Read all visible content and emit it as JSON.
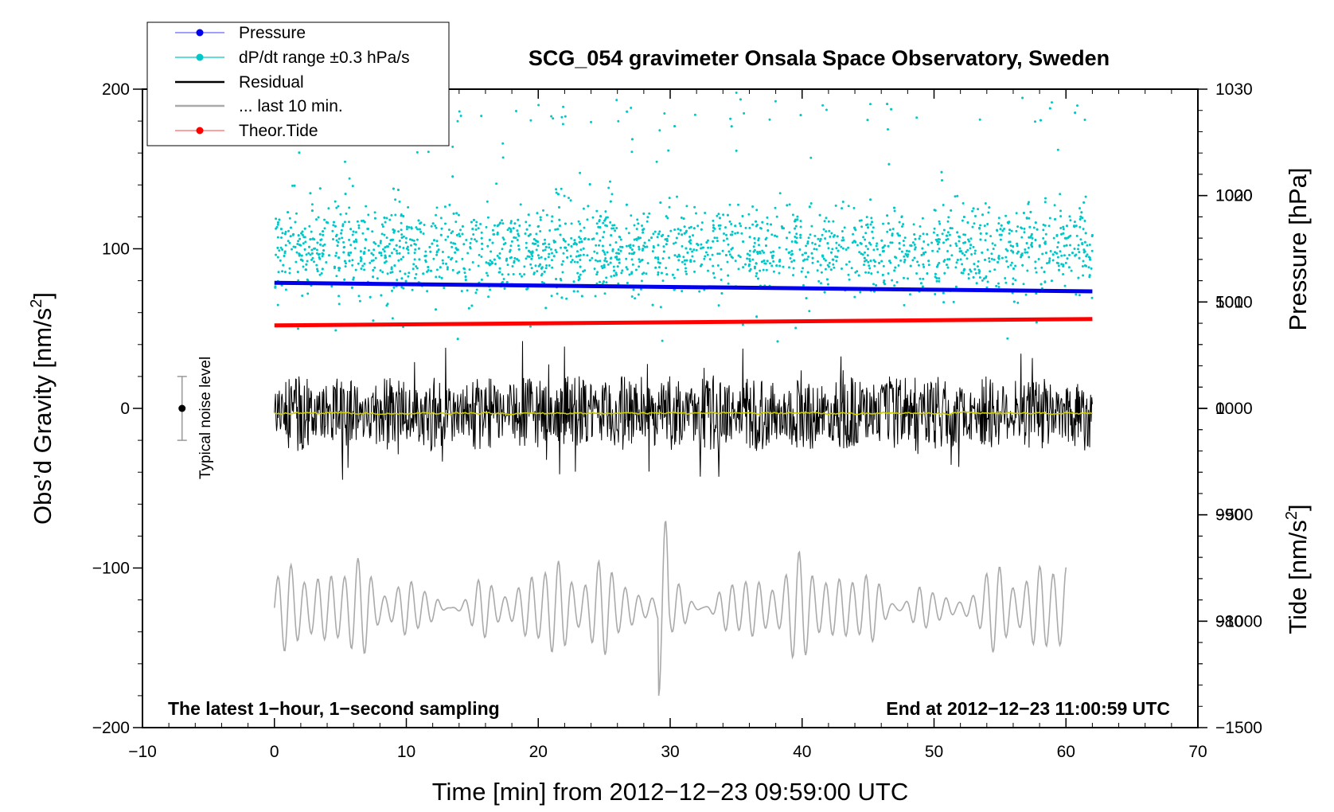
{
  "chart_data": {
    "type": "line",
    "title": "SCG_054 gravimeter Onsala Space Observatory, Sweden",
    "xlabel": "Time [min] from 2012−12−23 09:59:00 UTC",
    "ylabel_left_main": "Obs’d Gravity [nm/s",
    "ylabel_left_sup": "2",
    "ylabel_left_end": "]",
    "ylabel_right_top": "Pressure [hPa]",
    "ylabel_right_bottom_main": "Tide [nm/s",
    "ylabel_right_bottom_sup": "2",
    "ylabel_right_bottom_end": "]",
    "xlim": [
      -10,
      70
    ],
    "ylim_gravity": [
      -200,
      200
    ],
    "ylim_pressure": [
      970,
      1030
    ],
    "ylim_tide": [
      -1500,
      1500
    ],
    "x_ticks": [
      "−10",
      "0",
      "10",
      "20",
      "30",
      "40",
      "50",
      "60",
      "70"
    ],
    "y_ticks_gravity": [
      "200",
      "100",
      "0",
      "−100",
      "−200"
    ],
    "y_ticks_pressure": [
      "1030",
      "1020",
      "1010",
      "1000",
      "990",
      "980"
    ],
    "y_ticks_tide": [
      "1000",
      "500",
      "0",
      "−500",
      "−1000",
      "−1500"
    ],
    "annotation_left": "The latest 1−hour, 1−second sampling",
    "annotation_right": "End at 2012−12−23 11:00:59 UTC",
    "noise_label": "Typical noise level",
    "noise_level": {
      "center": 0,
      "half_range": 20,
      "x": -7
    },
    "legend": [
      {
        "name": "Pressure",
        "style": "line-dot",
        "color": "#0000ee"
      },
      {
        "name": "dP/dt range ±0.3 hPa/s",
        "style": "line-dot",
        "color": "#00c8c8"
      },
      {
        "name": "Residual",
        "style": "line",
        "color": "#000000"
      },
      {
        "name": "... last 10 min.",
        "style": "line",
        "color": "#aaaaaa"
      },
      {
        "name": "Theor.Tide",
        "style": "line-dot",
        "color": "#ff0000"
      }
    ],
    "colors": {
      "pressure": "#0000ee",
      "dpdt": "#00c8c8",
      "residual": "#000000",
      "residual_smooth": "#cccc00",
      "last10": "#aaaaaa",
      "tide": "#ff0000"
    },
    "series": [
      {
        "name": "Pressure",
        "axis": "pressure",
        "x": [
          0,
          62
        ],
        "values": [
          1011.8,
          1011.0
        ],
        "note": "slightly decreasing line"
      },
      {
        "name": "dP/dt range",
        "axis": "gravity",
        "x_range": [
          0,
          62
        ],
        "center": 100,
        "spread": 35,
        "note": "scatter cloud"
      },
      {
        "name": "Residual",
        "axis": "gravity",
        "x_range": [
          0,
          62
        ],
        "center": -3,
        "amplitude_max": 57,
        "note": "noisy 1-second residual"
      },
      {
        "name": "Residual smoothed",
        "axis": "gravity",
        "x_range": [
          0,
          62
        ],
        "center": -3
      },
      {
        "name": "... last 10 min.",
        "axis": "gravity",
        "x_range": [
          0,
          60
        ],
        "center": -125,
        "amplitude_max": 42
      },
      {
        "name": "Theor.Tide",
        "axis": "tide",
        "x": [
          0,
          62
        ],
        "values": [
          390,
          420
        ]
      }
    ]
  }
}
